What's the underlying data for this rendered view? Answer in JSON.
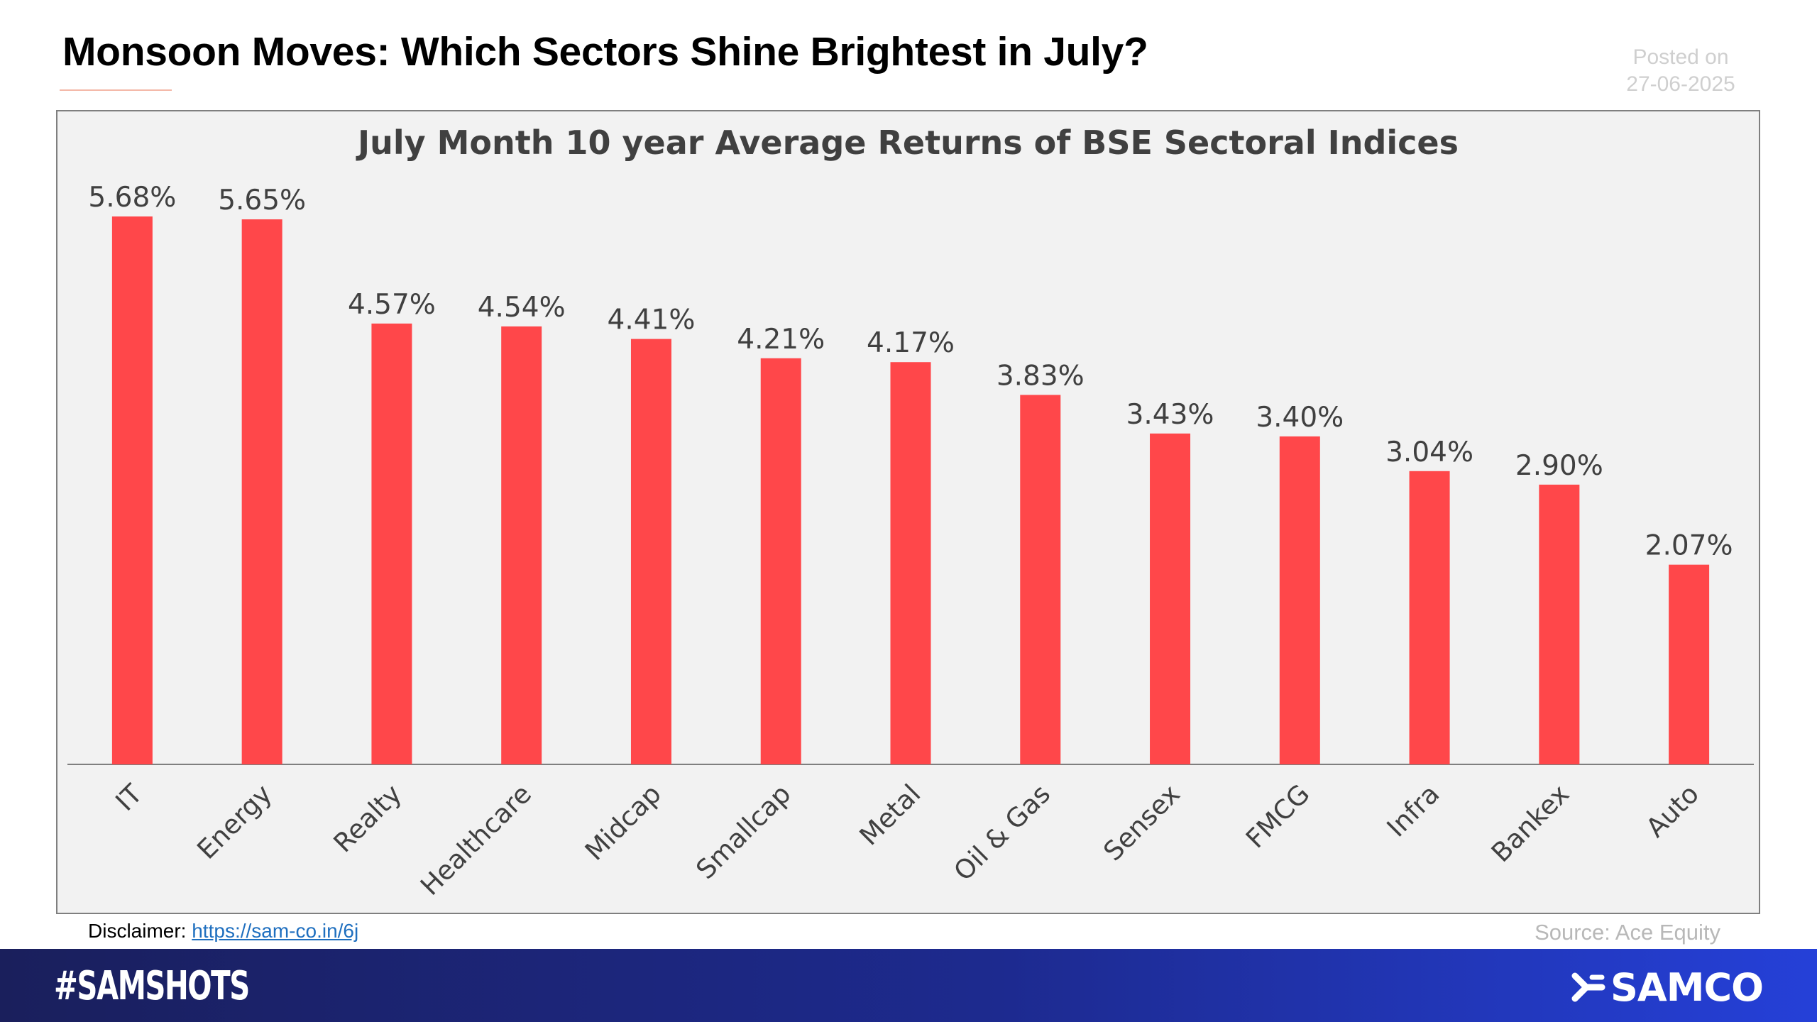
{
  "header": {
    "title": "Monsoon Moves: Which Sectors Shine Brightest in July?",
    "posted_label": "Posted on",
    "posted_date": "27-06-2025"
  },
  "chart_data": {
    "type": "bar",
    "title": "July Month 10 year Average Returns of BSE Sectoral Indices",
    "categories": [
      "IT",
      "Energy",
      "Realty",
      "Healthcare",
      "Midcap",
      "Smallcap",
      "Metal",
      "Oil & Gas",
      "Sensex",
      "FMCG",
      "Infra",
      "Bankex",
      "Auto"
    ],
    "values": [
      5.68,
      5.65,
      4.57,
      4.54,
      4.41,
      4.21,
      4.17,
      3.83,
      3.43,
      3.4,
      3.04,
      2.9,
      2.07
    ],
    "data_labels": [
      "5.68%",
      "5.65%",
      "4.57%",
      "4.54%",
      "4.41%",
      "4.21%",
      "4.17%",
      "3.83%",
      "3.43%",
      "3.40%",
      "3.04%",
      "2.90%",
      "2.07%"
    ],
    "bar_color": "#ff474a",
    "ylim": [
      0,
      5.68
    ],
    "grid": false,
    "legend": "none"
  },
  "footer_notes": {
    "disclaimer_label": "Disclaimer: ",
    "disclaimer_link": "https://sam-co.in/6j",
    "source": "Source: Ace Equity"
  },
  "footer": {
    "hashtag": "#SAMSHOTS",
    "brand": "SAMCO"
  },
  "colors": {
    "bar": "#ff474a",
    "chart_background": "#f2f2f2",
    "footer_start": "#1a1f5c",
    "footer_end": "#2540d8"
  }
}
